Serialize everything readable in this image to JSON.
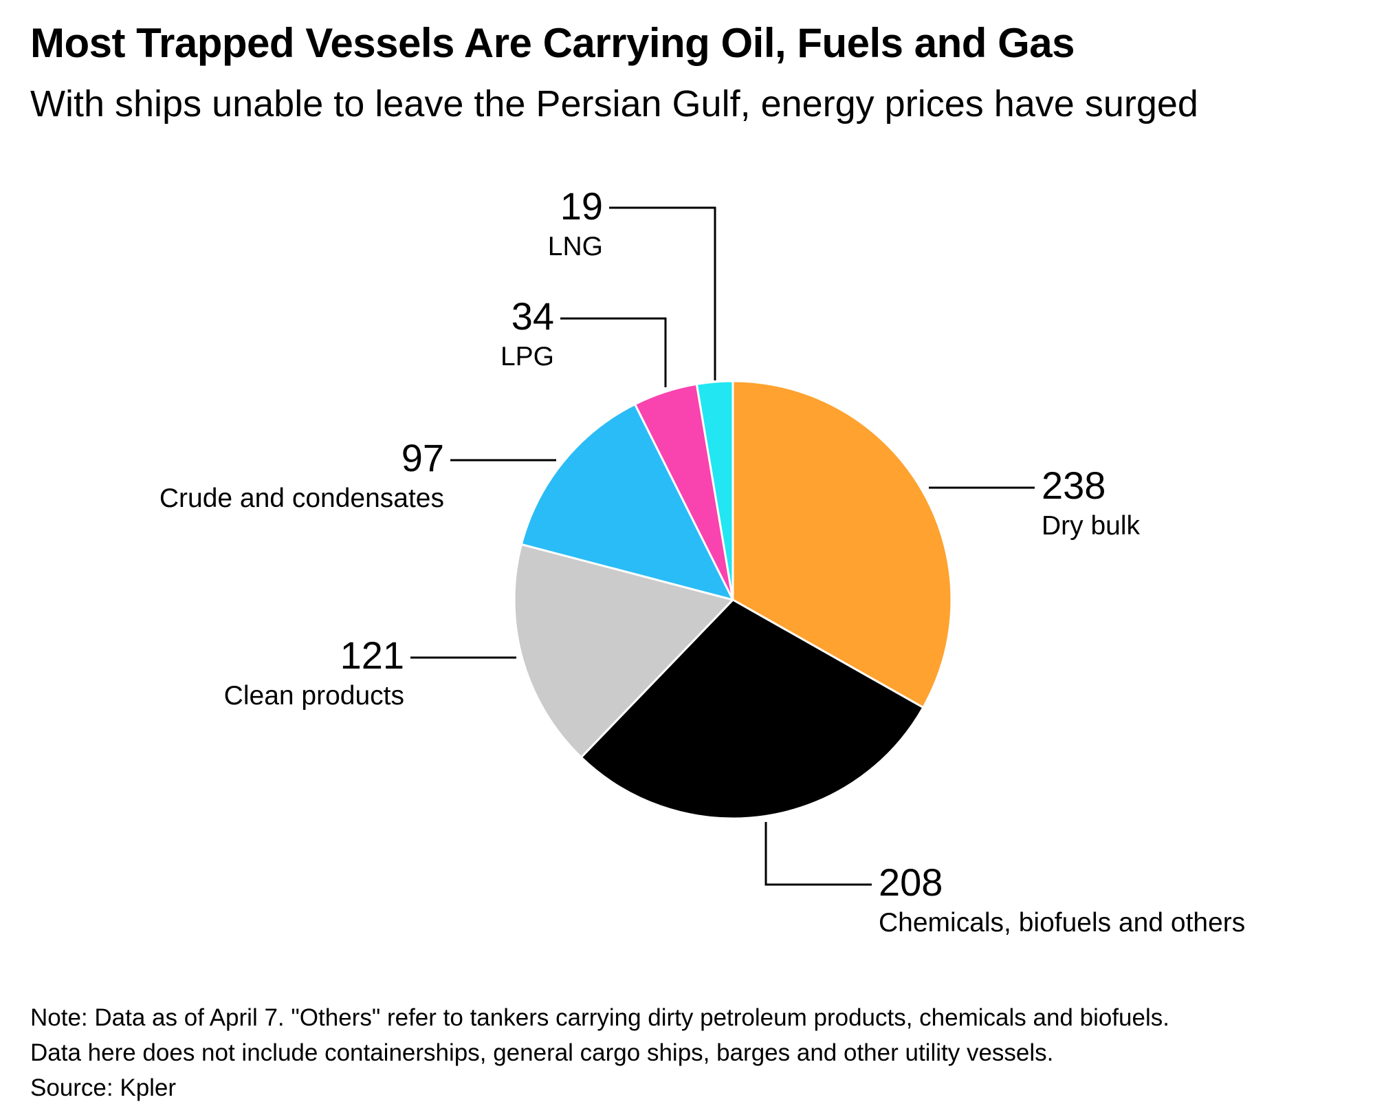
{
  "chart_data": {
    "type": "pie",
    "title": "Most Trapped Vessels Are Carrying Oil, Fuels and Gas",
    "subtitle": "With ships unable to leave the Persian Gulf, energy prices have surged",
    "slices": [
      {
        "label": "Dry bulk",
        "value": 238,
        "color": "#FFA22F"
      },
      {
        "label": "Chemicals, biofuels and others",
        "value": 208,
        "color": "#000000"
      },
      {
        "label": "Clean products",
        "value": 121,
        "color": "#CBCBCB"
      },
      {
        "label": "Crude and condensates",
        "value": 97,
        "color": "#2ABCF6"
      },
      {
        "label": "LPG",
        "value": 34,
        "color": "#F943AE"
      },
      {
        "label": "LNG",
        "value": 19,
        "color": "#22E6F1"
      }
    ],
    "start_angle": "12 o'clock",
    "direction": "clockwise",
    "legend": "none (direct labels with leader lines)"
  },
  "footer": {
    "note_line1": "Note: Data as of April 7. \"Others\" refer to tankers carrying dirty petroleum products, chemicals and biofuels.",
    "note_line2": "Data here does not include containerships, general cargo ships, barges and other utility vessels.",
    "source": "Source: Kpler"
  }
}
